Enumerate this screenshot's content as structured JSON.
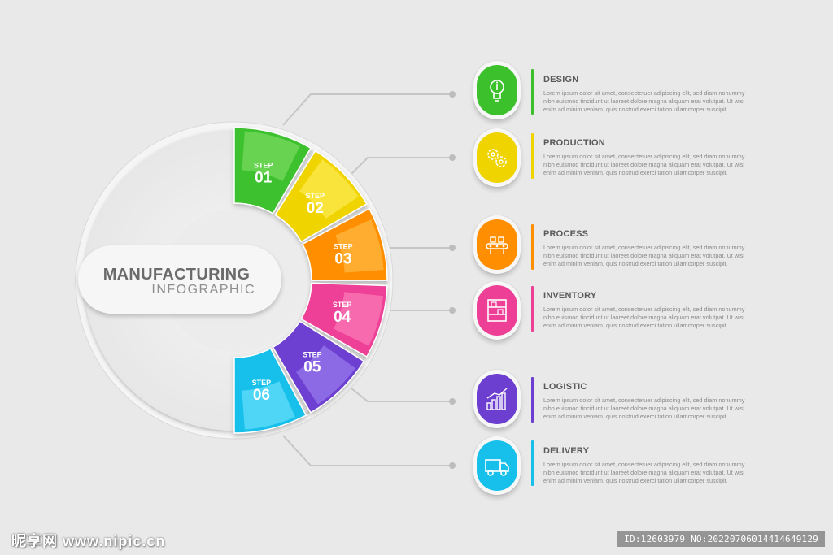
{
  "center": {
    "title": "MANUFACTURING",
    "subtitle": "INFOGRAPHIC"
  },
  "step_word": "STEP",
  "steps": [
    {
      "number": "01",
      "color": "#3cc12d",
      "light": "#8ae26f"
    },
    {
      "number": "02",
      "color": "#f0d400",
      "light": "#fff06a"
    },
    {
      "number": "03",
      "color": "#ff8f00",
      "light": "#ffc65a"
    },
    {
      "number": "04",
      "color": "#ee3f96",
      "light": "#ff8cc3"
    },
    {
      "number": "05",
      "color": "#6d3fd1",
      "light": "#a88cf5"
    },
    {
      "number": "06",
      "color": "#16c0ea",
      "light": "#7fe6ff"
    }
  ],
  "items": [
    {
      "title": "DESIGN",
      "icon": "lightbulb-icon",
      "color": "#3cc12d",
      "desc": [
        "Lorem ipsum dolor sit amet, consectetuer adipiscing elit, sed diam nonummy",
        "nibh euismod tincidunt ut laoreet dolore magna aliquam erat volutpat. Ut wisi",
        "enim ad minim veniam, quis nostrud exerci tation ullamcorper suscipit."
      ]
    },
    {
      "title": "PRODUCTION",
      "icon": "gears-icon",
      "color": "#f0d400",
      "desc": [
        "Lorem ipsum dolor sit amet, consectetuer adipiscing elit, sed diam nonummy",
        "nibh euismod tincidunt ut laoreet dolore magna aliquam erat volutpat. Ut wisi",
        "enim ad minim veniam, quis nostrud exerci tation ullamcorper suscipit."
      ]
    },
    {
      "title": "PROCESS",
      "icon": "conveyor-icon",
      "color": "#ff8f00",
      "desc": [
        "Lorem ipsum dolor sit amet, consectetuer adipiscing elit, sed diam nonummy",
        "nibh euismod tincidunt ut laoreet dolore magna aliquam erat volutpat. Ut wisi",
        "enim ad minim veniam, quis nostrud exerci tation ullamcorper suscipit."
      ]
    },
    {
      "title": "INVENTORY",
      "icon": "shelves-icon",
      "color": "#ee3f96",
      "desc": [
        "Lorem ipsum dolor sit amet, consectetuer adipiscing elit, sed diam nonummy",
        "nibh euismod tincidunt ut laoreet dolore magna aliquam erat volutpat. Ut wisi",
        "enim ad minim veniam, quis nostrud exerci tation ullamcorper suscipit."
      ]
    },
    {
      "title": "LOGISTIC",
      "icon": "bar-chart-icon",
      "color": "#6d3fd1",
      "desc": [
        "Lorem ipsum dolor sit amet, consectetuer adipiscing elit, sed diam nonummy",
        "nibh euismod tincidunt ut laoreet dolore magna aliquam erat volutpat. Ut wisi",
        "enim ad minim veniam, quis nostrud exerci tation ullamcorper suscipit."
      ]
    },
    {
      "title": "DELIVERY",
      "icon": "truck-icon",
      "color": "#16c0ea",
      "desc": [
        "Lorem ipsum dolor sit amet, consectetuer adipiscing elit, sed diam nonummy",
        "nibh euismod tincidunt ut laoreet dolore magna aliquam erat volutpat. Ut wisi",
        "enim ad minim veniam, quis nostrud exerci tation ullamcorper suscipit."
      ]
    }
  ],
  "watermark": {
    "left": "昵享网 www.nipic.cn",
    "right": "ID:12603979 NO:20220706014414649129"
  }
}
